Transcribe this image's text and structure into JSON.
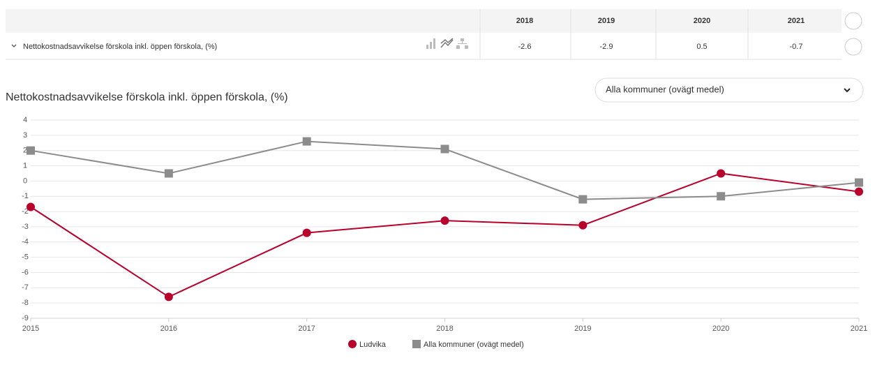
{
  "table": {
    "header": [
      2018,
      2019,
      2020,
      2021
    ],
    "rows": [
      {
        "label": "Nettokostnadsavvikelse förskola inkl. öppen förskola, (%)",
        "values": [
          -2.6,
          -2.9,
          0.5,
          -0.7
        ]
      }
    ]
  },
  "dropdown": "Alla kommuner (ovägt medel)",
  "chart_data": {
    "type": "line",
    "title": "Nettokostnadsavvikelse förskola inkl. öppen förskola, (%)",
    "x": [
      2015,
      2016,
      2017,
      2018,
      2019,
      2020,
      2021
    ],
    "xlim": [
      2015,
      2021
    ],
    "xticks": [
      2015,
      2016,
      2017,
      2018,
      2019,
      2020,
      2021
    ],
    "ylim": [
      -9,
      4
    ],
    "yticks": [
      -9,
      -8,
      -7,
      -6,
      -5,
      -4,
      -3,
      -2,
      -1,
      0,
      1,
      2,
      3,
      4
    ],
    "grid": true,
    "legend": "bottom",
    "series": [
      {
        "name": "Ludvika",
        "color": "#b8002b",
        "marker": "circle",
        "values": [
          -1.7,
          -7.6,
          -3.4,
          -2.6,
          -2.9,
          0.5,
          -0.7
        ]
      },
      {
        "name": "Alla kommuner (ovägt medel)",
        "color": "#8c8c8c",
        "marker": "square",
        "values": [
          2.0,
          0.5,
          2.6,
          2.1,
          -1.2,
          -1.0,
          -0.1
        ]
      }
    ]
  }
}
